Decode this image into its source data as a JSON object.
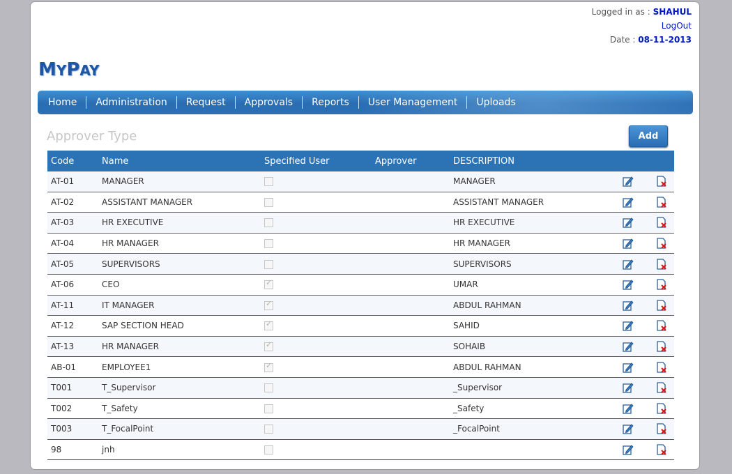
{
  "header": {
    "logged_in_label": "Logged in as :",
    "user": "SHAHUL",
    "logout": "LogOut",
    "date_label": "Date :",
    "date": "08-11-2013"
  },
  "logo": {
    "m": "M",
    "y": "Y",
    "p": "P",
    "ay": "AY"
  },
  "nav": [
    "Home",
    "Administration",
    "Request",
    "Approvals",
    "Reports",
    "User Management",
    "Uploads"
  ],
  "section": {
    "title": "Approver Type",
    "add_label": "Add"
  },
  "table": {
    "headers": {
      "code": "Code",
      "name": "Name",
      "specified_user": "Specified User",
      "approver": "Approver",
      "description": "DESCRIPTION"
    },
    "rows": [
      {
        "code": "AT-01",
        "name": "MANAGER",
        "specified": false,
        "approver": "",
        "description": "MANAGER"
      },
      {
        "code": "AT-02",
        "name": "ASSISTANT MANAGER",
        "specified": false,
        "approver": "",
        "description": "ASSISTANT MANAGER"
      },
      {
        "code": "AT-03",
        "name": "HR EXECUTIVE",
        "specified": false,
        "approver": "",
        "description": "HR EXECUTIVE"
      },
      {
        "code": "AT-04",
        "name": "HR MANAGER",
        "specified": false,
        "approver": "",
        "description": "HR MANAGER"
      },
      {
        "code": "AT-05",
        "name": "SUPERVISORS",
        "specified": false,
        "approver": "",
        "description": "SUPERVISORS"
      },
      {
        "code": "AT-06",
        "name": "CEO",
        "specified": true,
        "approver": "",
        "description": "UMAR"
      },
      {
        "code": "AT-11",
        "name": "IT MANAGER",
        "specified": true,
        "approver": "",
        "description": "ABDUL RAHMAN"
      },
      {
        "code": "AT-12",
        "name": "SAP SECTION HEAD",
        "specified": true,
        "approver": "",
        "description": "SAHID"
      },
      {
        "code": "AT-13",
        "name": "HR MANAGER",
        "specified": true,
        "approver": "",
        "description": "SOHAIB"
      },
      {
        "code": "AB-01",
        "name": "EMPLOYEE1",
        "specified": true,
        "approver": "",
        "description": "ABDUL RAHMAN"
      },
      {
        "code": "T001",
        "name": "T_Supervisor",
        "specified": false,
        "approver": "",
        "description": "_Supervisor"
      },
      {
        "code": "T002",
        "name": "T_Safety",
        "specified": false,
        "approver": "",
        "description": "_Safety"
      },
      {
        "code": "T003",
        "name": "T_FocalPoint",
        "specified": false,
        "approver": "",
        "description": "_FocalPoint"
      },
      {
        "code": "98",
        "name": "jnh",
        "specified": false,
        "approver": "",
        "description": ""
      }
    ]
  },
  "icons": {
    "edit": "edit-icon",
    "delete": "delete-icon"
  },
  "colors": {
    "nav": "#2c73b5",
    "accent": "#0018c8",
    "logo": "#1d56a3"
  }
}
